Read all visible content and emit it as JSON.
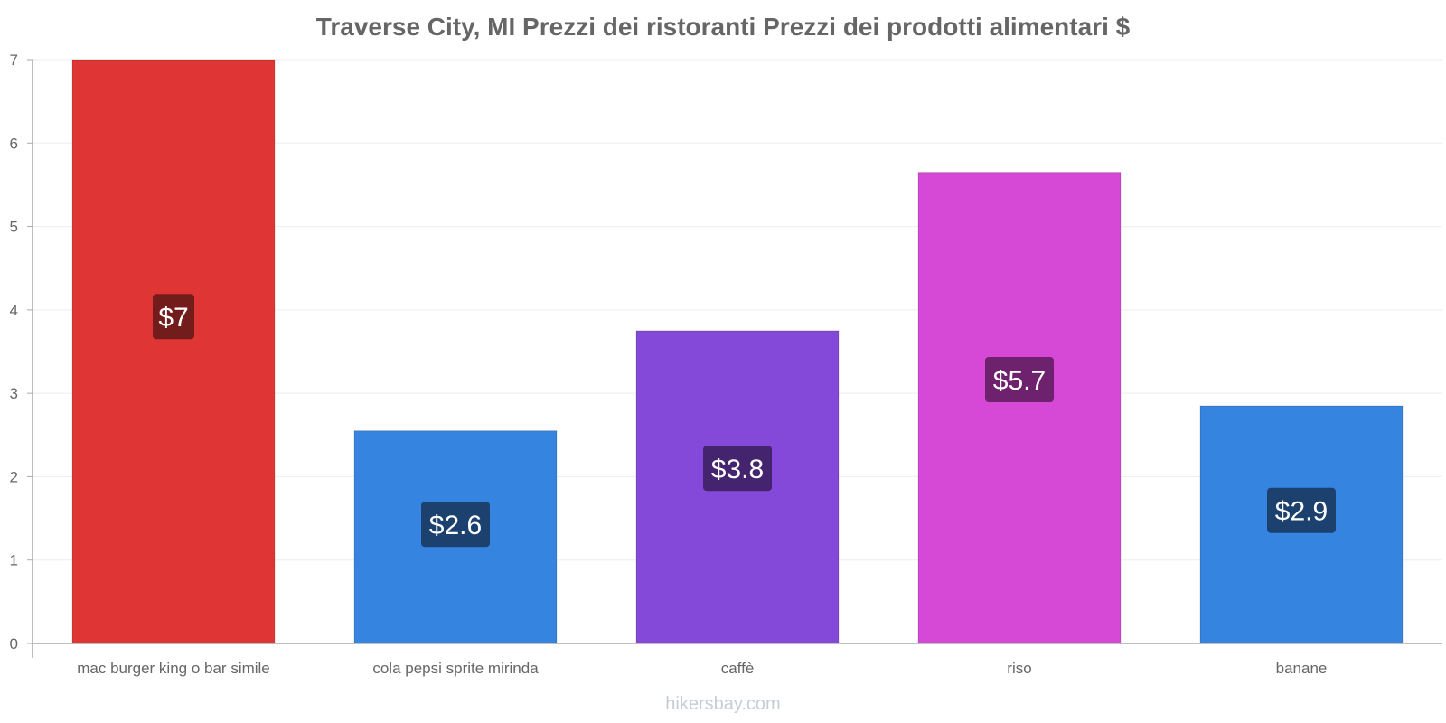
{
  "chart_data": {
    "type": "bar",
    "title": "Traverse City, MI Prezzi dei ristoranti Prezzi dei prodotti alimentari $",
    "categories": [
      "mac burger king o bar simile",
      "cola pepsi sprite mirinda",
      "caffè",
      "riso",
      "banane"
    ],
    "values": [
      7.0,
      2.55,
      3.75,
      5.65,
      2.85
    ],
    "data_labels": [
      "$7",
      "$2.6",
      "$3.8",
      "$5.7",
      "$2.9"
    ],
    "bar_colors": [
      "#e03535",
      "#3584e0",
      "#8449d9",
      "#d648d6",
      "#3584e0"
    ],
    "label_bg_colors": [
      "#731c1c",
      "#1d416f",
      "#44236f",
      "#6e226e",
      "#1d416f"
    ],
    "ylim": [
      0,
      7
    ],
    "yticks": [
      "0",
      "1",
      "2",
      "3",
      "4",
      "5",
      "6",
      "7"
    ],
    "xlabel": "",
    "ylabel": "",
    "grid": true
  },
  "watermark": "hikersbay.com"
}
